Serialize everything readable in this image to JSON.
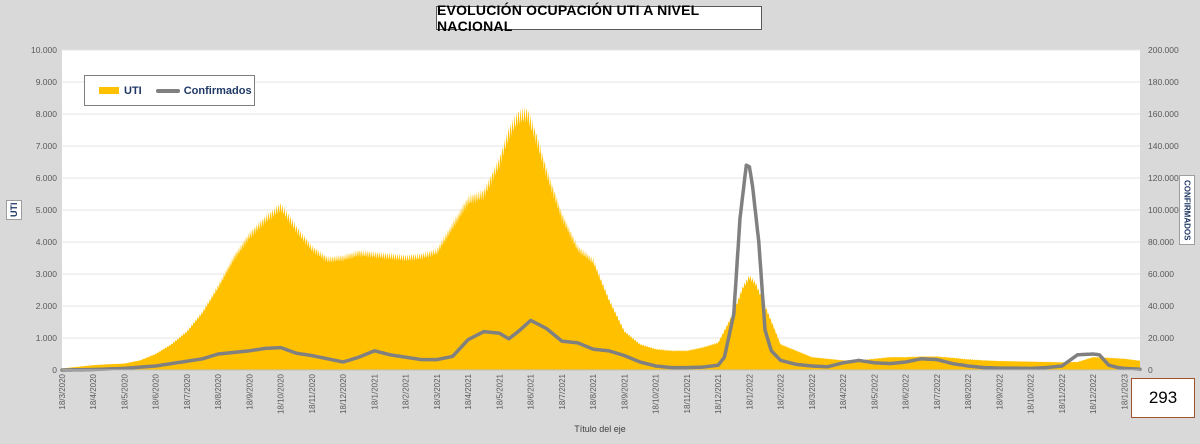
{
  "title": "EVOLUCIÓN  OCUPACIÓN UTI A NIVEL NACIONAL",
  "counter": "293",
  "legend": {
    "bar_label": "UTI",
    "line_label": "Confirmados"
  },
  "axes": {
    "left_title": "UTI",
    "right_title": "CONFIRMADOS",
    "x_title": "Título del eje"
  },
  "colors": {
    "uti": "#ffc000",
    "confirmados": "#808080",
    "background": "#d9d9d9",
    "plot_background": "#ffffff"
  },
  "chart_data": {
    "type": "area",
    "title": "EVOLUCIÓN  OCUPACIÓN UTI A NIVEL NACIONAL",
    "xlabel": "Título del eje",
    "ylabel": "UTI",
    "y2label": "CONFIRMADOS",
    "ylim": [
      0,
      10000
    ],
    "y2lim": [
      0,
      200000
    ],
    "yticks": [
      "0",
      "1.000",
      "2.000",
      "3.000",
      "4.000",
      "5.000",
      "6.000",
      "7.000",
      "8.000",
      "9.000",
      "10.000"
    ],
    "y2ticks": [
      "0",
      "20.000",
      "40.000",
      "60.000",
      "80.000",
      "100.000",
      "120.000",
      "140.000",
      "160.000",
      "180.000",
      "200.000"
    ],
    "xticks": [
      "18/3/2020",
      "18/4/2020",
      "18/5/2020",
      "18/6/2020",
      "18/7/2020",
      "18/8/2020",
      "18/9/2020",
      "18/10/2020",
      "18/11/2020",
      "18/12/2020",
      "18/1/2021",
      "18/2/2021",
      "18/3/2021",
      "18/4/2021",
      "18/5/2021",
      "18/6/2021",
      "18/7/2021",
      "18/8/2021",
      "18/9/2021",
      "18/10/2021",
      "18/11/2021",
      "18/12/2021",
      "18/1/2022",
      "18/2/2022",
      "18/3/2022",
      "18/4/2022",
      "18/5/2022",
      "18/6/2022",
      "18/7/2022",
      "18/8/2022",
      "18/9/2022",
      "18/10/2022",
      "18/11/2022",
      "18/12/2022",
      "18/1/2023"
    ],
    "grid": true,
    "legend_position": "top-left",
    "series": [
      {
        "name": "UTI",
        "type": "area",
        "axis": "left",
        "x_month_index": [
          0,
          0.5,
          1,
          1.5,
          2,
          2.5,
          3,
          3.5,
          4,
          4.5,
          5,
          5.5,
          6,
          6.5,
          7,
          7.3,
          7.5,
          8,
          8.5,
          9,
          9.5,
          10,
          10.5,
          11,
          11.5,
          12,
          12.5,
          13,
          13.5,
          14,
          14.3,
          14.6,
          14.9,
          15.2,
          15.5,
          16,
          16.5,
          17,
          17.5,
          18,
          18.5,
          19,
          19.5,
          20,
          20.5,
          21,
          21.5,
          21.8,
          22,
          22.2,
          22.5,
          23,
          23.5,
          24,
          24.5,
          25,
          25.5,
          26,
          26.5,
          27,
          27.5,
          28,
          28.5,
          29,
          29.5,
          30,
          30.5,
          31,
          31.5,
          32,
          32.5,
          33,
          33.5,
          34,
          34.5
        ],
        "values": [
          50,
          100,
          150,
          180,
          200,
          300,
          500,
          800,
          1200,
          1800,
          2600,
          3500,
          4200,
          4700,
          5100,
          4700,
          4400,
          3800,
          3450,
          3500,
          3650,
          3600,
          3550,
          3500,
          3550,
          3700,
          4500,
          5300,
          5500,
          6500,
          7400,
          7900,
          8000,
          7200,
          6200,
          4800,
          3800,
          3400,
          2200,
          1200,
          800,
          650,
          600,
          600,
          700,
          850,
          1800,
          2600,
          2900,
          2700,
          2000,
          800,
          600,
          400,
          350,
          300,
          300,
          350,
          400,
          400,
          420,
          420,
          380,
          330,
          300,
          280,
          270,
          260,
          250,
          240,
          250,
          400,
          380,
          350,
          290
        ]
      },
      {
        "name": "Confirmados",
        "type": "line",
        "axis": "right",
        "x_month_index": [
          0,
          1,
          2,
          2.5,
          3,
          3.5,
          4,
          4.5,
          5,
          5.5,
          6,
          6.5,
          7,
          7.5,
          8,
          8.5,
          9,
          9.5,
          10,
          10.5,
          11,
          11.5,
          12,
          12.5,
          13,
          13.5,
          14,
          14.3,
          14.6,
          15,
          15.5,
          16,
          16.5,
          17,
          17.5,
          18,
          18.5,
          19,
          19.5,
          20,
          20.5,
          21,
          21.2,
          21.5,
          21.7,
          21.9,
          22,
          22.1,
          22.3,
          22.5,
          22.7,
          23,
          23.5,
          24,
          24.5,
          25,
          25.5,
          26,
          26.5,
          27,
          27.5,
          28,
          28.5,
          29,
          29.5,
          30,
          30.5,
          31,
          31.5,
          32,
          32.5,
          33,
          33.2,
          33.5,
          33.8,
          34,
          34.5
        ],
        "values": [
          0,
          300,
          1000,
          1800,
          2500,
          4000,
          5500,
          7000,
          10000,
          11000,
          12000,
          13500,
          14000,
          10500,
          9000,
          7000,
          5000,
          8000,
          12000,
          9500,
          8000,
          6500,
          6500,
          8500,
          19000,
          24000,
          23000,
          19500,
          24000,
          31000,
          26000,
          18000,
          17000,
          13000,
          12000,
          9000,
          5000,
          2500,
          1500,
          1500,
          1800,
          3000,
          8000,
          35000,
          95000,
          128000,
          127000,
          115000,
          80000,
          25000,
          12000,
          6000,
          3500,
          2500,
          2000,
          4500,
          6000,
          4500,
          4000,
          5000,
          7000,
          6500,
          4000,
          2500,
          1500,
          1200,
          1200,
          1000,
          1500,
          2500,
          9500,
          10000,
          9500,
          3000,
          1500,
          1000,
          500
        ]
      }
    ]
  }
}
